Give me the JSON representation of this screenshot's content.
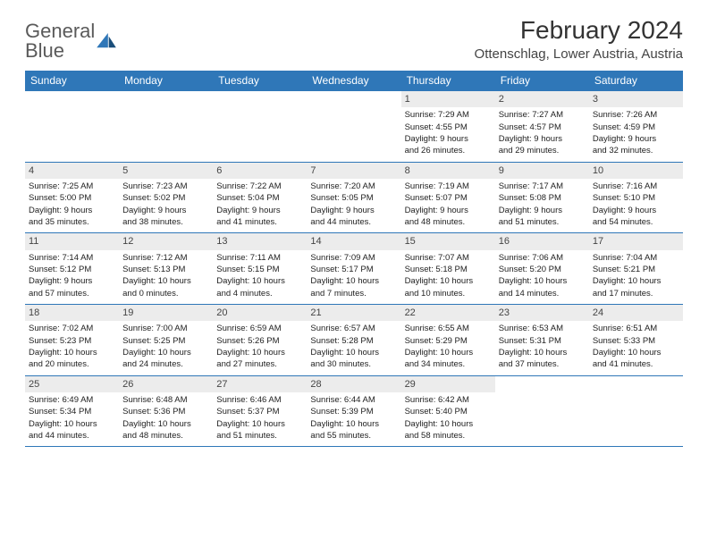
{
  "logo": {
    "line1": "General",
    "line2": "Blue"
  },
  "title": "February 2024",
  "location": "Ottenschlag, Lower Austria, Austria",
  "colors": {
    "header_bg": "#2f77b8",
    "header_text": "#ffffff",
    "daynum_bg": "#ececec",
    "border": "#2f77b8",
    "text": "#222222",
    "logo_gray": "#5a5a5a",
    "logo_blue": "#2f77b8"
  },
  "weekdays": [
    "Sunday",
    "Monday",
    "Tuesday",
    "Wednesday",
    "Thursday",
    "Friday",
    "Saturday"
  ],
  "weeks": [
    [
      null,
      null,
      null,
      null,
      {
        "n": "1",
        "sr": "Sunrise: 7:29 AM",
        "ss": "Sunset: 4:55 PM",
        "d1": "Daylight: 9 hours",
        "d2": "and 26 minutes."
      },
      {
        "n": "2",
        "sr": "Sunrise: 7:27 AM",
        "ss": "Sunset: 4:57 PM",
        "d1": "Daylight: 9 hours",
        "d2": "and 29 minutes."
      },
      {
        "n": "3",
        "sr": "Sunrise: 7:26 AM",
        "ss": "Sunset: 4:59 PM",
        "d1": "Daylight: 9 hours",
        "d2": "and 32 minutes."
      }
    ],
    [
      {
        "n": "4",
        "sr": "Sunrise: 7:25 AM",
        "ss": "Sunset: 5:00 PM",
        "d1": "Daylight: 9 hours",
        "d2": "and 35 minutes."
      },
      {
        "n": "5",
        "sr": "Sunrise: 7:23 AM",
        "ss": "Sunset: 5:02 PM",
        "d1": "Daylight: 9 hours",
        "d2": "and 38 minutes."
      },
      {
        "n": "6",
        "sr": "Sunrise: 7:22 AM",
        "ss": "Sunset: 5:04 PM",
        "d1": "Daylight: 9 hours",
        "d2": "and 41 minutes."
      },
      {
        "n": "7",
        "sr": "Sunrise: 7:20 AM",
        "ss": "Sunset: 5:05 PM",
        "d1": "Daylight: 9 hours",
        "d2": "and 44 minutes."
      },
      {
        "n": "8",
        "sr": "Sunrise: 7:19 AM",
        "ss": "Sunset: 5:07 PM",
        "d1": "Daylight: 9 hours",
        "d2": "and 48 minutes."
      },
      {
        "n": "9",
        "sr": "Sunrise: 7:17 AM",
        "ss": "Sunset: 5:08 PM",
        "d1": "Daylight: 9 hours",
        "d2": "and 51 minutes."
      },
      {
        "n": "10",
        "sr": "Sunrise: 7:16 AM",
        "ss": "Sunset: 5:10 PM",
        "d1": "Daylight: 9 hours",
        "d2": "and 54 minutes."
      }
    ],
    [
      {
        "n": "11",
        "sr": "Sunrise: 7:14 AM",
        "ss": "Sunset: 5:12 PM",
        "d1": "Daylight: 9 hours",
        "d2": "and 57 minutes."
      },
      {
        "n": "12",
        "sr": "Sunrise: 7:12 AM",
        "ss": "Sunset: 5:13 PM",
        "d1": "Daylight: 10 hours",
        "d2": "and 0 minutes."
      },
      {
        "n": "13",
        "sr": "Sunrise: 7:11 AM",
        "ss": "Sunset: 5:15 PM",
        "d1": "Daylight: 10 hours",
        "d2": "and 4 minutes."
      },
      {
        "n": "14",
        "sr": "Sunrise: 7:09 AM",
        "ss": "Sunset: 5:17 PM",
        "d1": "Daylight: 10 hours",
        "d2": "and 7 minutes."
      },
      {
        "n": "15",
        "sr": "Sunrise: 7:07 AM",
        "ss": "Sunset: 5:18 PM",
        "d1": "Daylight: 10 hours",
        "d2": "and 10 minutes."
      },
      {
        "n": "16",
        "sr": "Sunrise: 7:06 AM",
        "ss": "Sunset: 5:20 PM",
        "d1": "Daylight: 10 hours",
        "d2": "and 14 minutes."
      },
      {
        "n": "17",
        "sr": "Sunrise: 7:04 AM",
        "ss": "Sunset: 5:21 PM",
        "d1": "Daylight: 10 hours",
        "d2": "and 17 minutes."
      }
    ],
    [
      {
        "n": "18",
        "sr": "Sunrise: 7:02 AM",
        "ss": "Sunset: 5:23 PM",
        "d1": "Daylight: 10 hours",
        "d2": "and 20 minutes."
      },
      {
        "n": "19",
        "sr": "Sunrise: 7:00 AM",
        "ss": "Sunset: 5:25 PM",
        "d1": "Daylight: 10 hours",
        "d2": "and 24 minutes."
      },
      {
        "n": "20",
        "sr": "Sunrise: 6:59 AM",
        "ss": "Sunset: 5:26 PM",
        "d1": "Daylight: 10 hours",
        "d2": "and 27 minutes."
      },
      {
        "n": "21",
        "sr": "Sunrise: 6:57 AM",
        "ss": "Sunset: 5:28 PM",
        "d1": "Daylight: 10 hours",
        "d2": "and 30 minutes."
      },
      {
        "n": "22",
        "sr": "Sunrise: 6:55 AM",
        "ss": "Sunset: 5:29 PM",
        "d1": "Daylight: 10 hours",
        "d2": "and 34 minutes."
      },
      {
        "n": "23",
        "sr": "Sunrise: 6:53 AM",
        "ss": "Sunset: 5:31 PM",
        "d1": "Daylight: 10 hours",
        "d2": "and 37 minutes."
      },
      {
        "n": "24",
        "sr": "Sunrise: 6:51 AM",
        "ss": "Sunset: 5:33 PM",
        "d1": "Daylight: 10 hours",
        "d2": "and 41 minutes."
      }
    ],
    [
      {
        "n": "25",
        "sr": "Sunrise: 6:49 AM",
        "ss": "Sunset: 5:34 PM",
        "d1": "Daylight: 10 hours",
        "d2": "and 44 minutes."
      },
      {
        "n": "26",
        "sr": "Sunrise: 6:48 AM",
        "ss": "Sunset: 5:36 PM",
        "d1": "Daylight: 10 hours",
        "d2": "and 48 minutes."
      },
      {
        "n": "27",
        "sr": "Sunrise: 6:46 AM",
        "ss": "Sunset: 5:37 PM",
        "d1": "Daylight: 10 hours",
        "d2": "and 51 minutes."
      },
      {
        "n": "28",
        "sr": "Sunrise: 6:44 AM",
        "ss": "Sunset: 5:39 PM",
        "d1": "Daylight: 10 hours",
        "d2": "and 55 minutes."
      },
      {
        "n": "29",
        "sr": "Sunrise: 6:42 AM",
        "ss": "Sunset: 5:40 PM",
        "d1": "Daylight: 10 hours",
        "d2": "and 58 minutes."
      },
      null,
      null
    ]
  ]
}
